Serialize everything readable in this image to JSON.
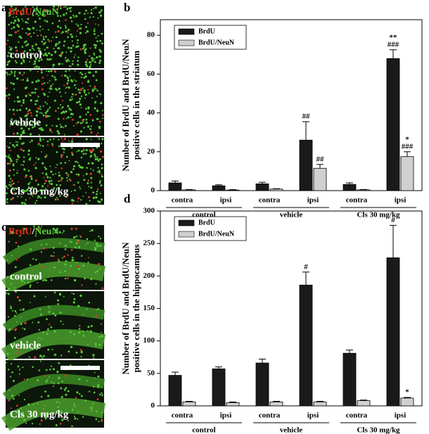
{
  "panels": {
    "a": {
      "label": "a",
      "stain": [
        "BrdU",
        "/",
        "NeuN"
      ],
      "conditions": [
        "control",
        "vehicle",
        "Cls 30 mg/kg"
      ]
    },
    "c": {
      "label": "c",
      "stain": [
        "BrdU",
        "/",
        "NeuN"
      ],
      "conditions": [
        "control",
        "vehicle",
        "Cls 30 mg/kg"
      ]
    }
  },
  "chart_data": [
    {
      "type": "bar",
      "panel_label": "b",
      "ylabel": [
        "Number of BrdU and BrdU/NeuN",
        "positive cells in the striatum"
      ],
      "categories": [
        "contra",
        "ipsi",
        "contra",
        "ipsi",
        "contra",
        "ipsi"
      ],
      "group_labels": [
        "control",
        "vehicle",
        "Cls 30 mg/kg"
      ],
      "series": [
        {
          "name": "BrdU",
          "color": "#1a1a1a",
          "values": [
            4,
            2.5,
            3.5,
            26,
            3.2,
            68
          ],
          "errors": [
            1,
            0.5,
            0.8,
            9.5,
            0.8,
            4.5
          ],
          "annotations": [
            null,
            null,
            null,
            [
              "##"
            ],
            null,
            [
              "**",
              "###"
            ]
          ]
        },
        {
          "name": "BrdU/NeuN",
          "color": "#d0d0d0",
          "values": [
            0.4,
            0.3,
            0.8,
            11.5,
            0.4,
            17.5
          ],
          "errors": [
            0.2,
            0.2,
            0.2,
            2,
            0.2,
            2.5
          ],
          "annotations": [
            null,
            null,
            null,
            [
              "##"
            ],
            null,
            [
              "*",
              "###"
            ]
          ]
        }
      ],
      "ylim": [
        0,
        88
      ],
      "yticks": [
        0,
        20,
        40,
        60,
        80
      ],
      "legend": "upper left"
    },
    {
      "type": "bar",
      "panel_label": "d",
      "ylabel": [
        "Number of BrdU and BrdU/NeuN",
        "positive cells in the hippocampus"
      ],
      "categories": [
        "contra",
        "ipsi",
        "contra",
        "ipsi",
        "contra",
        "ipsi"
      ],
      "group_labels": [
        "control",
        "vehicle",
        "Cls 30 mg/kg"
      ],
      "series": [
        {
          "name": "BrdU",
          "color": "#1a1a1a",
          "values": [
            47,
            57,
            66,
            186,
            81,
            228
          ],
          "errors": [
            5,
            3,
            6,
            20,
            5,
            50
          ],
          "annotations": [
            null,
            null,
            null,
            [
              "#"
            ],
            null,
            [
              "#"
            ]
          ]
        },
        {
          "name": "BrdU/NeuN",
          "color": "#d0d0d0",
          "values": [
            6,
            5,
            6,
            6,
            8,
            12
          ],
          "errors": [
            1,
            1,
            1,
            1,
            1,
            1
          ],
          "annotations": [
            null,
            null,
            null,
            null,
            null,
            [
              "*"
            ]
          ]
        }
      ],
      "ylim": [
        0,
        300
      ],
      "yticks": [
        0,
        50,
        100,
        150,
        200,
        250,
        300
      ],
      "legend": "upper left"
    }
  ]
}
